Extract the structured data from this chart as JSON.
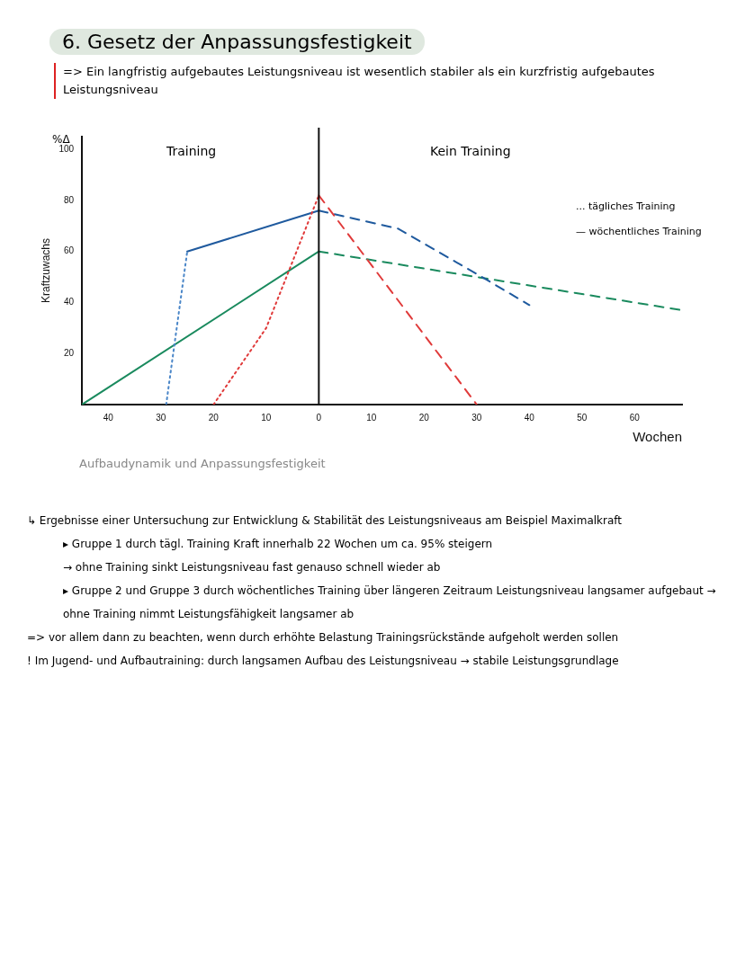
{
  "chart_data": {
    "type": "line",
    "title": "6. Gesetz der Anpassungsfestigkeit",
    "subtitle": "=> Ein langfristig aufgebautes Leistungsniveau ist wesentlich stabiler als ein kurzfristig aufgebautes Leistungsniveau",
    "xlabel": "Wochen",
    "ylabel": "Kraftzuwachs",
    "xlim": [
      -45,
      69
    ],
    "ylim": [
      0,
      105
    ],
    "xticks": [
      {
        "value": -40,
        "label": "40"
      },
      {
        "value": -30,
        "label": "30"
      },
      {
        "value": -20,
        "label": "20"
      },
      {
        "value": -10,
        "label": "10"
      },
      0,
      10,
      20,
      30,
      40,
      50,
      60
    ],
    "yticks": [
      20,
      40,
      60,
      80,
      100
    ],
    "grid": false,
    "legend": false,
    "marker": "none",
    "ref_lines": [
      {
        "axis": "x",
        "value": 0,
        "color": "#111111",
        "line_style": "solid"
      }
    ],
    "series": [
      {
        "color": "#e03a3a",
        "line_style": "dotted",
        "x": [
          -20,
          -10,
          0
        ],
        "values": [
          0,
          30,
          82
        ]
      },
      {
        "color": "#e03a3a",
        "line_style": "dashed",
        "x": [
          0,
          30
        ],
        "values": [
          82,
          0
        ]
      },
      {
        "color": "#4a86c8",
        "line_style": "dotted",
        "x": [
          -29,
          -25
        ],
        "values": [
          0,
          60
        ]
      },
      {
        "color": "#1f5a9e",
        "line_style": "solid",
        "x": [
          -25,
          0
        ],
        "values": [
          60,
          76
        ]
      },
      {
        "color": "#1f5a9e",
        "line_style": "dashed",
        "x": [
          0,
          15,
          31,
          40
        ],
        "values": [
          76,
          69,
          50,
          39
        ]
      },
      {
        "color": "#1a8a5e",
        "line_style": "solid",
        "x": [
          -45,
          0
        ],
        "values": [
          0,
          60
        ]
      },
      {
        "color": "#1a8a5e",
        "line_style": "dashed",
        "x": [
          0,
          69
        ],
        "values": [
          60,
          37
        ]
      }
    ],
    "annotations": [
      "... tägliches Training",
      "— wöchentliches Training",
      "%Δ",
      "Training",
      "Kein Training",
      "Aufbaudynamik und Anpassungsfestigkeit",
      "↳ Ergebnisse einer Untersuchung zur Entwicklung & Stabilität des Leistungsniveaus am Beispiel Maximalkraft",
      "▸ Gruppe 1 durch tägl. Training Kraft innerhalb 22 Wochen um ca. 95% steigern",
      "→ ohne Training sinkt Leistungsniveau fast genauso schnell wieder ab",
      "▸ Gruppe 2 und Gruppe 3 durch wöchentliches Training über längeren Zeitraum Leistungsniveau langsamer aufgebaut → ohne Training nimmt Leistungsfähigkeit langsamer ab",
      "=> vor allem dann zu beachten, wenn durch erhöhte Belastung Trainingsrückstände aufgeholt werden sollen",
      "! Im Jugend- und Aufbautraining: durch langsamen Aufbau des Leistungsniveau → stabile Leistungsgrundlage"
    ]
  }
}
